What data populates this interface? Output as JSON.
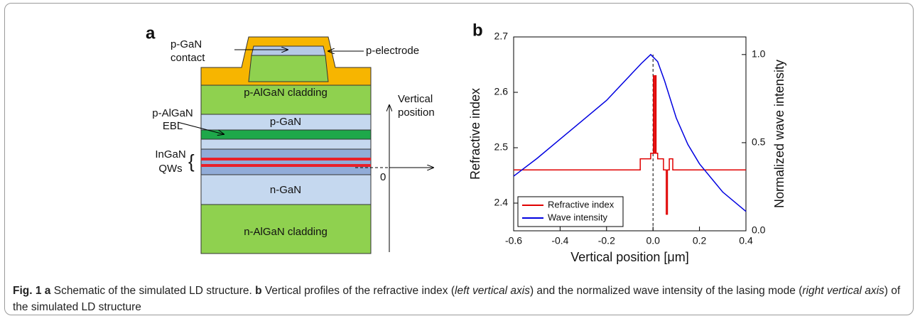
{
  "panel_a": {
    "label": "a",
    "contact": [
      "p-GaN",
      "contact"
    ],
    "electrode": "p-electrode",
    "p_cladding": "p-AlGaN cladding",
    "p_gan": "p-GaN",
    "ebl": [
      "p-AlGaN",
      "EBL"
    ],
    "qws": [
      "InGaN",
      "QWs"
    ],
    "n_gan": "n-GaN",
    "n_cladding": "n-AlGaN cladding",
    "axis": [
      "Vertical",
      "position"
    ],
    "origin": "0"
  },
  "chart_data": {
    "type": "line",
    "panel_label": "b",
    "x_label": "Vertical position [μm]",
    "y_label": "Refractive index",
    "y2_label": "Normalized wave intensity",
    "xlim": [
      -0.6,
      0.4
    ],
    "xticks": [
      -0.6,
      -0.4,
      -0.2,
      {
        "value": 0,
        "label": "0.0"
      },
      0.2,
      0.4
    ],
    "ylim": [
      2.35,
      2.7
    ],
    "yticks": [
      2.4,
      2.5,
      2.6,
      2.7
    ],
    "y2lim": [
      0,
      1.1
    ],
    "y2ticks": [
      {
        "value": 0,
        "label": "0.0"
      },
      0.5,
      {
        "value": 1,
        "label": "1.0"
      }
    ],
    "legend": "lower left",
    "series": [
      {
        "name": "Refractive index",
        "color": "#e00000",
        "axis": "y",
        "x": [
          -0.6,
          -0.055,
          -0.055,
          -0.01,
          -0.01,
          0.002,
          0.002,
          0.005,
          0.005,
          0.01,
          0.01,
          0.013,
          0.013,
          0.02,
          0.02,
          0.045,
          0.045,
          0.057,
          0.057,
          0.062,
          0.062,
          0.07,
          0.07,
          0.085,
          0.085,
          0.4
        ],
        "values": [
          2.46,
          2.46,
          2.48,
          2.48,
          2.49,
          2.49,
          2.63,
          2.63,
          2.49,
          2.49,
          2.63,
          2.63,
          2.49,
          2.49,
          2.48,
          2.48,
          2.46,
          2.46,
          2.38,
          2.38,
          2.46,
          2.46,
          2.48,
          2.48,
          2.46,
          2.46
        ]
      },
      {
        "name": "Wave intensity",
        "color": "#0000e0",
        "axis": "y2",
        "x": [
          -0.6,
          -0.5,
          -0.4,
          -0.3,
          -0.2,
          -0.1,
          -0.05,
          -0.01,
          0.02,
          0.05,
          0.1,
          0.15,
          0.2,
          0.3,
          0.4
        ],
        "values": [
          0.31,
          0.41,
          0.52,
          0.63,
          0.74,
          0.88,
          0.95,
          1.0,
          0.96,
          0.85,
          0.64,
          0.49,
          0.38,
          0.22,
          0.11
        ]
      }
    ]
  },
  "caption": [
    "Fig. 1",
    " a",
    " Schematic of the simulated LD structure. ",
    "b",
    " Vertical profiles of the refractive index (",
    "left vertical axis",
    ") and the normalized wave intensity of the lasing mode (",
    "right vertical axis",
    ") of the simulated LD structure"
  ]
}
